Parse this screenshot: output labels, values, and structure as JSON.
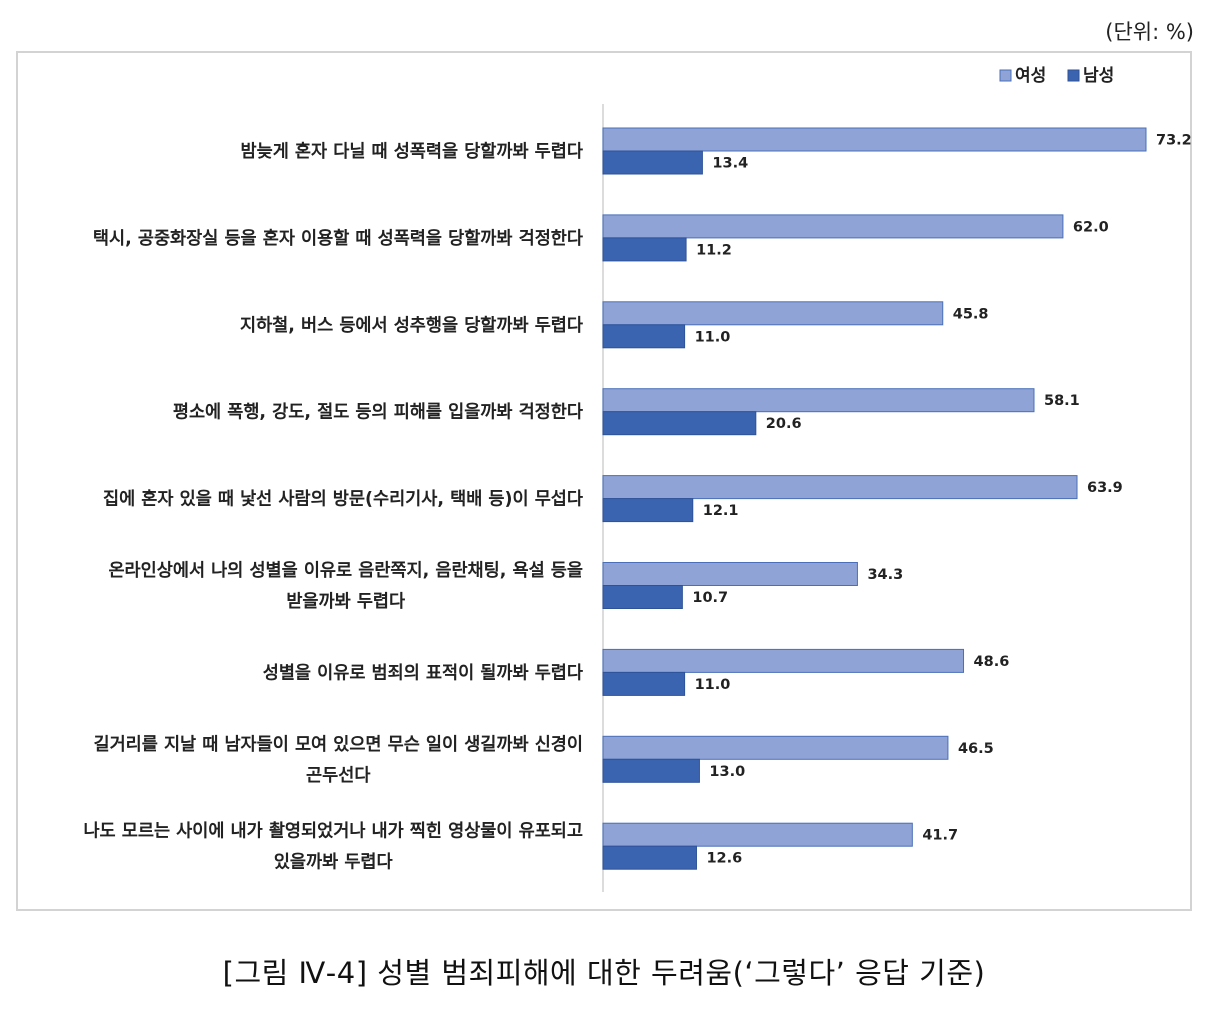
{
  "unit_label": "(단위: %)",
  "caption": "[그림 Ⅳ-4] 성별 범죄피해에 대한 두려움(‘그렇다’ 응답 기준)",
  "colors": {
    "female": "#8fa3d6",
    "male": "#3b64b0"
  },
  "chart_data": {
    "type": "bar",
    "orientation": "horizontal",
    "legend_position": "top-right",
    "categories": [
      [
        "밤늦게 혼자 다닐 때 성폭력을 당할까봐 두렵다"
      ],
      [
        "택시, 공중화장실 등을 혼자 이용할 때 성폭력을 당할까봐 걱정한다"
      ],
      [
        "지하철, 버스 등에서 성추행을 당할까봐 두렵다"
      ],
      [
        "평소에 폭행, 강도, 절도 등의 피해를 입을까봐 걱정한다"
      ],
      [
        "집에 혼자 있을 때 낯선 사람의 방문(수리기사, 택배 등)이 무섭다"
      ],
      [
        "온라인상에서 나의 성별을 이유로 음란쪽지, 음란채팅, 욕설 등을",
        "받을까봐 두렵다"
      ],
      [
        "성별을 이유로 범죄의 표적이 될까봐 두렵다"
      ],
      [
        "길거리를 지날 때 남자들이 모여 있으면 무슨 일이 생길까봐 신경이",
        "곤두선다"
      ],
      [
        "나도 모르는 사이에 내가 촬영되었거나 내가 찍힌 영상물이 유포되고",
        "있을까봐 두렵다"
      ]
    ],
    "series": [
      {
        "name": "여성",
        "values": [
          73.2,
          62.0,
          45.8,
          58.1,
          63.9,
          34.3,
          48.6,
          46.5,
          41.7
        ],
        "labels": [
          "73.2",
          "62.0",
          "45.8",
          "58.1",
          "63.9",
          "34.3",
          "48.6",
          "46.5",
          "41.7"
        ]
      },
      {
        "name": "남성",
        "values": [
          13.4,
          11.2,
          11.0,
          20.6,
          12.1,
          10.7,
          11.0,
          13.0,
          12.6
        ],
        "labels": [
          "13.4",
          "11.2",
          "11.0",
          "20.6",
          "12.1",
          "10.7",
          "11.0",
          "13.0",
          "12.6"
        ]
      }
    ]
  }
}
